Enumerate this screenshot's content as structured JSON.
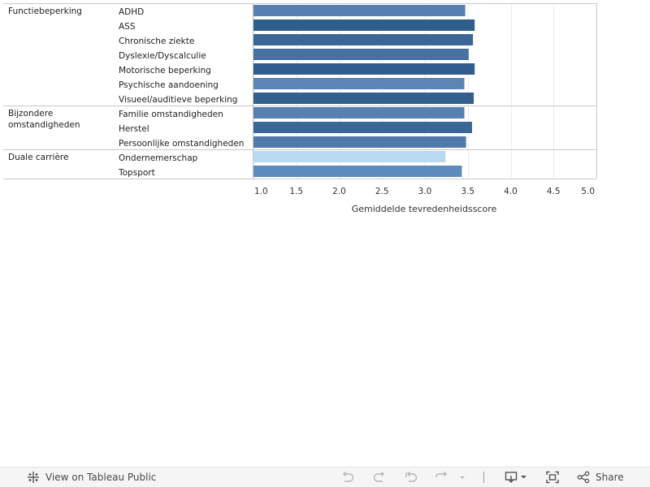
{
  "chart_data": {
    "type": "bar",
    "orientation": "horizontal",
    "xlabel": "Gemiddelde tevredenheidsscore",
    "xlim": [
      1.0,
      5.0
    ],
    "x_ticks": [
      "1.0",
      "1.5",
      "2.0",
      "2.5",
      "3.0",
      "3.5",
      "4.0",
      "4.5",
      "5.0"
    ],
    "grid": true,
    "groups": [
      {
        "label": "Functiebeperking",
        "rows": [
          {
            "category": "ADHD",
            "value": 3.47,
            "color": "#5580b0"
          },
          {
            "category": "ASS",
            "value": 3.58,
            "color": "#2f5d8c"
          },
          {
            "category": "Chronische ziekte",
            "value": 3.56,
            "color": "#3a6797"
          },
          {
            "category": "Dyslexie/Dyscalculie",
            "value": 3.51,
            "color": "#4572a2"
          },
          {
            "category": "Motorische beperking",
            "value": 3.58,
            "color": "#2f5d8c"
          },
          {
            "category": "Psychische aandoening",
            "value": 3.46,
            "color": "#5a85b4"
          },
          {
            "category": "Visueel/auditieve beperking",
            "value": 3.57,
            "color": "#33608f"
          }
        ]
      },
      {
        "label": "Bijzondere omstandigheden",
        "label_lines": [
          "Bijzondere",
          "omstandigheden"
        ],
        "rows": [
          {
            "category": "Familie omstandigheden",
            "value": 3.46,
            "color": "#5580b0"
          },
          {
            "category": "Herstel",
            "value": 3.55,
            "color": "#3a6797"
          },
          {
            "category": "Persoonlijke omstandigheden",
            "value": 3.48,
            "color": "#4f7aab"
          }
        ]
      },
      {
        "label": "Duale carrière",
        "rows": [
          {
            "category": "Ondernemerschap",
            "value": 3.24,
            "color": "#b9d9ef"
          },
          {
            "category": "Topsport",
            "value": 3.43,
            "color": "#5e8bbd"
          }
        ]
      }
    ]
  },
  "toolbar": {
    "view_label": "View on Tableau Public",
    "share_label": "Share",
    "icons": [
      "tableau-logo-icon",
      "undo-icon",
      "redo-icon",
      "revert-icon",
      "refresh-icon",
      "download-icon",
      "fullscreen-icon",
      "share-icon"
    ]
  }
}
